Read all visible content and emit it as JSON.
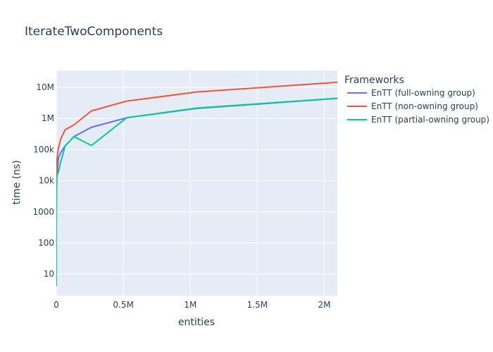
{
  "chart_data": {
    "type": "line",
    "title": "IterateTwoComponents",
    "xlabel": "entities",
    "ylabel": "time (ns)",
    "x_scale": "linear",
    "y_scale": "log",
    "xlim": [
      0,
      2097152
    ],
    "ylim": [
      2,
      35000000
    ],
    "x_ticks": [
      {
        "value": 0,
        "label": "0"
      },
      {
        "value": 500000,
        "label": "0.5M"
      },
      {
        "value": 1000000,
        "label": "1M"
      },
      {
        "value": 1500000,
        "label": "1.5M"
      },
      {
        "value": 2000000,
        "label": "2M"
      }
    ],
    "y_ticks": [
      {
        "value": 10,
        "label": "10"
      },
      {
        "value": 100,
        "label": "100"
      },
      {
        "value": 1000,
        "label": "1000"
      },
      {
        "value": 10000,
        "label": "10k"
      },
      {
        "value": 100000,
        "label": "100k"
      },
      {
        "value": 1000000,
        "label": "1M"
      },
      {
        "value": 10000000,
        "label": "10M"
      }
    ],
    "grid": true,
    "plot_bgcolor": "#E5ECF6",
    "legend": {
      "title": "Frameworks",
      "placement": "right"
    },
    "series": [
      {
        "name": "EnTT (full-owning group)",
        "color": "#636efa",
        "x": [
          1,
          4,
          16,
          64,
          256,
          1024,
          4096,
          16384,
          32768,
          65536,
          131072,
          262144,
          524288,
          1048576,
          2097152
        ],
        "y": [
          4,
          14,
          55,
          220,
          870,
          3500,
          14000,
          55000,
          80000,
          130000,
          260000,
          520000,
          1050000,
          2100000,
          4400000
        ]
      },
      {
        "name": "EnTT (non-owning group)",
        "color": "#EF553B",
        "x": [
          1,
          4,
          16,
          64,
          256,
          1024,
          4096,
          8192,
          16384,
          32768,
          65536,
          131072,
          262144,
          524288,
          1048576,
          2097152
        ],
        "y": [
          5,
          25,
          100,
          400,
          1600,
          6500,
          40000,
          70000,
          110000,
          220000,
          430000,
          620000,
          1750000,
          3600000,
          7100000,
          14500000
        ]
      },
      {
        "name": "EnTT (partial-owning group)",
        "color": "#00cc96",
        "x": [
          1,
          4,
          16,
          64,
          256,
          1024,
          4096,
          16384,
          32768,
          65536,
          131072,
          262144,
          524288,
          1048576,
          2097152
        ],
        "y": [
          4,
          14,
          55,
          220,
          870,
          3500,
          14000,
          20000,
          40000,
          130000,
          260000,
          135000,
          1050000,
          2150000,
          4450000
        ]
      }
    ]
  }
}
